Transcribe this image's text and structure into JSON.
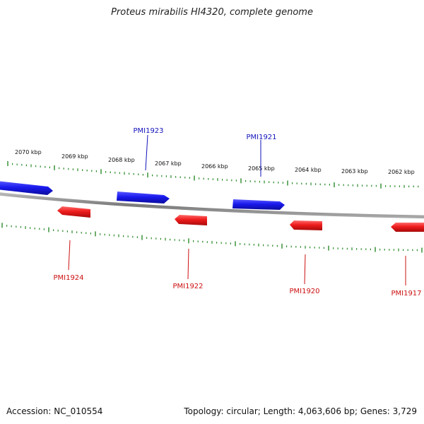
{
  "title": "Proteus mirabilis HI4320, complete genome",
  "footer": {
    "accession": "Accession: NC_010554",
    "stats": "Topology: circular; Length: 4,063,606 bp; Genes: 3,729"
  },
  "colors": {
    "forward_gene": "#1a1aee",
    "reverse_gene": "#ee1c1c",
    "backbone": "#8c8c8c",
    "tick": "#2a8a2a",
    "forward_label": "#1212bb",
    "reverse_label": "#cc1010"
  },
  "ruler_labels": [
    "2070 kbp",
    "2069 kbp",
    "2068 kbp",
    "2067 kbp",
    "2066 kbp",
    "2065 kbp",
    "2064 kbp",
    "2063 kbp",
    "2062 kbp"
  ],
  "genes": {
    "forward": [
      {
        "label": "PMI1923"
      },
      {
        "label": "PMI1921"
      }
    ],
    "reverse": [
      {
        "label": "PMI1924"
      },
      {
        "label": "PMI1922"
      },
      {
        "label": "PMI1920"
      },
      {
        "label": "PMI1917"
      }
    ]
  }
}
